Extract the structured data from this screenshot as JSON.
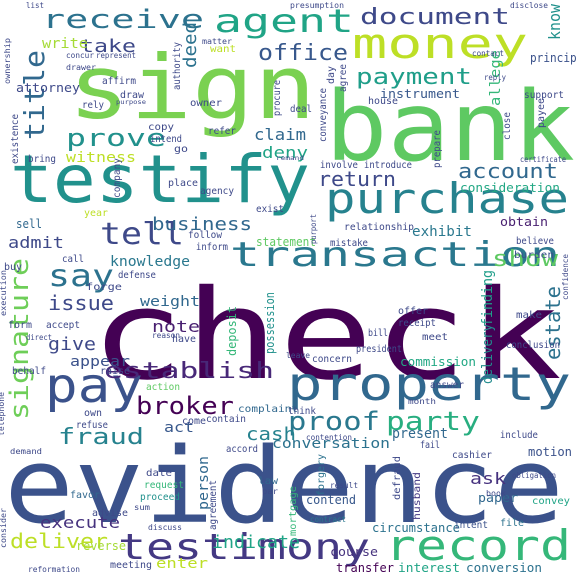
{
  "words": [
    {
      "text": "check",
      "color": "#440154"
    },
    {
      "text": "evidence",
      "color": "#3b528b"
    },
    {
      "text": "bank",
      "color": "#5ec962"
    },
    {
      "text": "sign",
      "color": "#7ad151"
    },
    {
      "text": "testify",
      "color": "#21918c"
    },
    {
      "text": "property",
      "color": "#31688e"
    },
    {
      "text": "pay",
      "color": "#3b528b"
    },
    {
      "text": "purchase",
      "color": "#26828e"
    },
    {
      "text": "transaction",
      "color": "#2a788e"
    },
    {
      "text": "money",
      "color": "#bddf26"
    },
    {
      "text": "testimony",
      "color": "#443983"
    },
    {
      "text": "record",
      "color": "#35b779"
    },
    {
      "text": "agent",
      "color": "#20a486"
    },
    {
      "text": "receive",
      "color": "#2c728e"
    },
    {
      "text": "document",
      "color": "#3e4989"
    },
    {
      "text": "title",
      "color": "#31688e"
    },
    {
      "text": "signature",
      "color": "#6ece58"
    },
    {
      "text": "tell",
      "color": "#3e4989"
    },
    {
      "text": "say",
      "color": "#2c728e"
    },
    {
      "text": "prove",
      "color": "#21918c"
    },
    {
      "text": "establish",
      "color": "#482878"
    },
    {
      "text": "office",
      "color": "#38588c"
    },
    {
      "text": "payment",
      "color": "#1f9e89"
    },
    {
      "text": "broker",
      "color": "#440154"
    },
    {
      "text": "proof",
      "color": "#2a788e"
    },
    {
      "text": "party",
      "color": "#28ae80"
    },
    {
      "text": "fraud",
      "color": "#26828e"
    },
    {
      "text": "account",
      "color": "#31688e"
    },
    {
      "text": "show",
      "color": "#5ec962"
    },
    {
      "text": "estate",
      "color": "#2c728e"
    },
    {
      "text": "business",
      "color": "#31688e"
    },
    {
      "text": "return",
      "color": "#3e4989"
    },
    {
      "text": "issue",
      "color": "#3e4989"
    },
    {
      "text": "deliver",
      "color": "#bddf26"
    },
    {
      "text": "execute",
      "color": "#46327e"
    },
    {
      "text": "indicate",
      "color": "#20a486"
    },
    {
      "text": "take",
      "color": "#3e4989"
    },
    {
      "text": "write",
      "color": "#a5db36"
    },
    {
      "text": "deed",
      "color": "#2c728e"
    },
    {
      "text": "claim",
      "color": "#31688e"
    },
    {
      "text": "deny",
      "color": "#20a486"
    },
    {
      "text": "witness",
      "color": "#bddf26"
    },
    {
      "text": "admit",
      "color": "#3e4989"
    },
    {
      "text": "give",
      "color": "#3e4989"
    },
    {
      "text": "note",
      "color": "#481f70"
    },
    {
      "text": "cash",
      "color": "#26828e"
    },
    {
      "text": "conversation",
      "color": "#2c728e"
    },
    {
      "text": "appear",
      "color": "#3b528b"
    },
    {
      "text": "act",
      "color": "#38588c"
    },
    {
      "text": "person",
      "color": "#31688e"
    },
    {
      "text": "knowledge",
      "color": "#2a788e"
    },
    {
      "text": "weight",
      "color": "#31688e"
    },
    {
      "text": "know",
      "color": "#21918c"
    },
    {
      "text": "allege",
      "color": "#35b779"
    },
    {
      "text": "principal",
      "color": "#3b528b"
    },
    {
      "text": "instrument",
      "color": "#38588c"
    },
    {
      "text": "attorney",
      "color": "#3e4989"
    },
    {
      "text": "finding",
      "color": "#1f9e89"
    },
    {
      "text": "delivery",
      "color": "#228c8d"
    },
    {
      "text": "exhibit",
      "color": "#2a788e"
    },
    {
      "text": "obtain",
      "color": "#481f70"
    },
    {
      "text": "consideration",
      "color": "#22a884"
    },
    {
      "text": "present",
      "color": "#31688e"
    },
    {
      "text": "ask",
      "color": "#46327e"
    },
    {
      "text": "commission",
      "color": "#22a884"
    },
    {
      "text": "enter",
      "color": "#bddf26"
    },
    {
      "text": "course",
      "color": "#46327e"
    },
    {
      "text": "transfer",
      "color": "#440154"
    },
    {
      "text": "interest",
      "color": "#20a486"
    },
    {
      "text": "conversion",
      "color": "#2c728e"
    },
    {
      "text": "circumstance",
      "color": "#2c728e"
    },
    {
      "text": "contend",
      "color": "#38588c"
    },
    {
      "text": "sell",
      "color": "#31688e"
    },
    {
      "text": "motion",
      "color": "#3b528b"
    },
    {
      "text": "paper",
      "color": "#31688e"
    },
    {
      "text": "deposit",
      "color": "#35b779"
    },
    {
      "text": "statement",
      "color": "#5ec962"
    },
    {
      "text": "relationship",
      "color": "#3e4989"
    },
    {
      "text": "possession",
      "color": "#21918c"
    },
    {
      "text": "complaint",
      "color": "#31688e"
    },
    {
      "text": "forge",
      "color": "#3e4989"
    },
    {
      "text": "burden",
      "color": "#3b528b"
    },
    {
      "text": "contract",
      "color": "#2a788e"
    },
    {
      "text": "file",
      "color": "#2c728e"
    },
    {
      "text": "husband",
      "color": "#443983"
    },
    {
      "text": "defraud",
      "color": "#3e4989"
    },
    {
      "text": "convey",
      "color": "#20a486"
    },
    {
      "text": "intent",
      "color": "#3b528b"
    },
    {
      "text": "meeting",
      "color": "#3e4989"
    },
    {
      "text": "reverse",
      "color": "#a5db36"
    },
    {
      "text": "mortgage",
      "color": "#35b779"
    },
    {
      "text": "forgery",
      "color": "#2c728e"
    },
    {
      "text": "law",
      "color": "#31688e"
    },
    {
      "text": "date",
      "color": "#3e4989"
    },
    {
      "text": "favor",
      "color": "#31688e"
    },
    {
      "text": "advise",
      "color": "#3e4989"
    },
    {
      "text": "request",
      "color": "#35b779"
    },
    {
      "text": "proceed",
      "color": "#21918c"
    },
    {
      "text": "agreement",
      "color": "#3e4989"
    },
    {
      "text": "accord",
      "color": "#3e4989"
    },
    {
      "text": "contain",
      "color": "#3e4989"
    },
    {
      "text": "action",
      "color": "#5ec962"
    },
    {
      "text": "raise",
      "color": "#3e4989"
    },
    {
      "text": "behalf",
      "color": "#3e4989"
    },
    {
      "text": "form",
      "color": "#3e4989"
    },
    {
      "text": "accept",
      "color": "#3e4989"
    },
    {
      "text": "buy",
      "color": "#3e4989"
    },
    {
      "text": "call",
      "color": "#3e4989"
    },
    {
      "text": "year",
      "color": "#bddf26"
    },
    {
      "text": "follow",
      "color": "#3e4989"
    },
    {
      "text": "exist",
      "color": "#3e4989"
    },
    {
      "text": "place",
      "color": "#3e4989"
    },
    {
      "text": "agency",
      "color": "#3e4989"
    },
    {
      "text": "company",
      "color": "#3e4989"
    },
    {
      "text": "copy",
      "color": "#3e4989"
    },
    {
      "text": "intend",
      "color": "#3e4989"
    },
    {
      "text": "draw",
      "color": "#3e4989"
    },
    {
      "text": "affirm",
      "color": "#3e4989"
    },
    {
      "text": "owner",
      "color": "#3e4989"
    },
    {
      "text": "authority",
      "color": "#3e4989"
    },
    {
      "text": "concur",
      "color": "#3e4989"
    },
    {
      "text": "represent",
      "color": "#3e4989"
    },
    {
      "text": "want",
      "color": "#bddf26"
    },
    {
      "text": "procure",
      "color": "#3e4989"
    },
    {
      "text": "deal",
      "color": "#3e4989"
    },
    {
      "text": "day",
      "color": "#3e4989"
    },
    {
      "text": "agree",
      "color": "#3e4989"
    },
    {
      "text": "house",
      "color": "#3e4989"
    },
    {
      "text": "reply",
      "color": "#3e4989"
    },
    {
      "text": "support",
      "color": "#3e4989"
    },
    {
      "text": "close",
      "color": "#3e4989"
    },
    {
      "text": "payee",
      "color": "#3e4989"
    },
    {
      "text": "refer",
      "color": "#3e4989"
    },
    {
      "text": "go",
      "color": "#3e4989"
    },
    {
      "text": "involve",
      "color": "#3e4989"
    },
    {
      "text": "introduce",
      "color": "#3e4989"
    },
    {
      "text": "prepare",
      "color": "#3e4989"
    },
    {
      "text": "inform",
      "color": "#3e4989"
    },
    {
      "text": "mistake",
      "color": "#3e4989"
    },
    {
      "text": "believe",
      "color": "#3e4989"
    },
    {
      "text": "defense",
      "color": "#3e4989"
    },
    {
      "text": "offer",
      "color": "#3e4989"
    },
    {
      "text": "receipt",
      "color": "#3e4989"
    },
    {
      "text": "meet",
      "color": "#3e4989"
    },
    {
      "text": "president",
      "color": "#3e4989"
    },
    {
      "text": "concern",
      "color": "#3e4989"
    },
    {
      "text": "conclusion",
      "color": "#3e4989"
    },
    {
      "text": "answer",
      "color": "#3e4989"
    },
    {
      "text": "make",
      "color": "#3e4989"
    },
    {
      "text": "bill",
      "color": "#3e4989"
    },
    {
      "text": "leave",
      "color": "#3e4989"
    },
    {
      "text": "think",
      "color": "#3e4989"
    },
    {
      "text": "contention",
      "color": "#3e4989"
    },
    {
      "text": "fail",
      "color": "#3e4989"
    },
    {
      "text": "cashier",
      "color": "#3e4989"
    },
    {
      "text": "include",
      "color": "#3e4989"
    },
    {
      "text": "month",
      "color": "#3e4989"
    },
    {
      "text": "refuse",
      "color": "#3e4989"
    },
    {
      "text": "own",
      "color": "#3e4989"
    },
    {
      "text": "come",
      "color": "#3e4989"
    },
    {
      "text": "have",
      "color": "#3e4989"
    },
    {
      "text": "reason",
      "color": "#3e4989"
    },
    {
      "text": "purport",
      "color": "#3e4989"
    },
    {
      "text": "conveyance",
      "color": "#3e4989"
    },
    {
      "text": "existence",
      "color": "#3e4989"
    },
    {
      "text": "execution",
      "color": "#3e4989"
    },
    {
      "text": "bring",
      "color": "#3e4989"
    },
    {
      "text": "rely",
      "color": "#3e4989"
    },
    {
      "text": "ownership",
      "color": "#3e4989"
    },
    {
      "text": "drawer",
      "color": "#3e4989"
    },
    {
      "text": "matter",
      "color": "#3e4989"
    },
    {
      "text": "presumption",
      "color": "#3e4989"
    },
    {
      "text": "list",
      "color": "#3e4989"
    },
    {
      "text": "disclose",
      "color": "#3e4989"
    },
    {
      "text": "direct",
      "color": "#3e4989"
    },
    {
      "text": "demand",
      "color": "#3e4989"
    },
    {
      "text": "discuss",
      "color": "#3e4989"
    },
    {
      "text": "result",
      "color": "#3e4989"
    },
    {
      "text": "sum",
      "color": "#3e4989"
    },
    {
      "text": "par",
      "color": "#3e4989"
    },
    {
      "text": "telephone",
      "color": "#3e4989"
    },
    {
      "text": "reformation",
      "color": "#3e4989"
    },
    {
      "text": "consider",
      "color": "#3e4989"
    },
    {
      "text": "contact",
      "color": "#3e4989"
    },
    {
      "text": "purpose",
      "color": "#3e4989"
    },
    {
      "text": "certificate",
      "color": "#3e4989"
    },
    {
      "text": "obligation",
      "color": "#3e4989"
    },
    {
      "text": "confidence",
      "color": "#3e4989"
    },
    {
      "text": "remand",
      "color": "#3e4989"
    },
    {
      "text": "book",
      "color": "#3e4989"
    }
  ]
}
